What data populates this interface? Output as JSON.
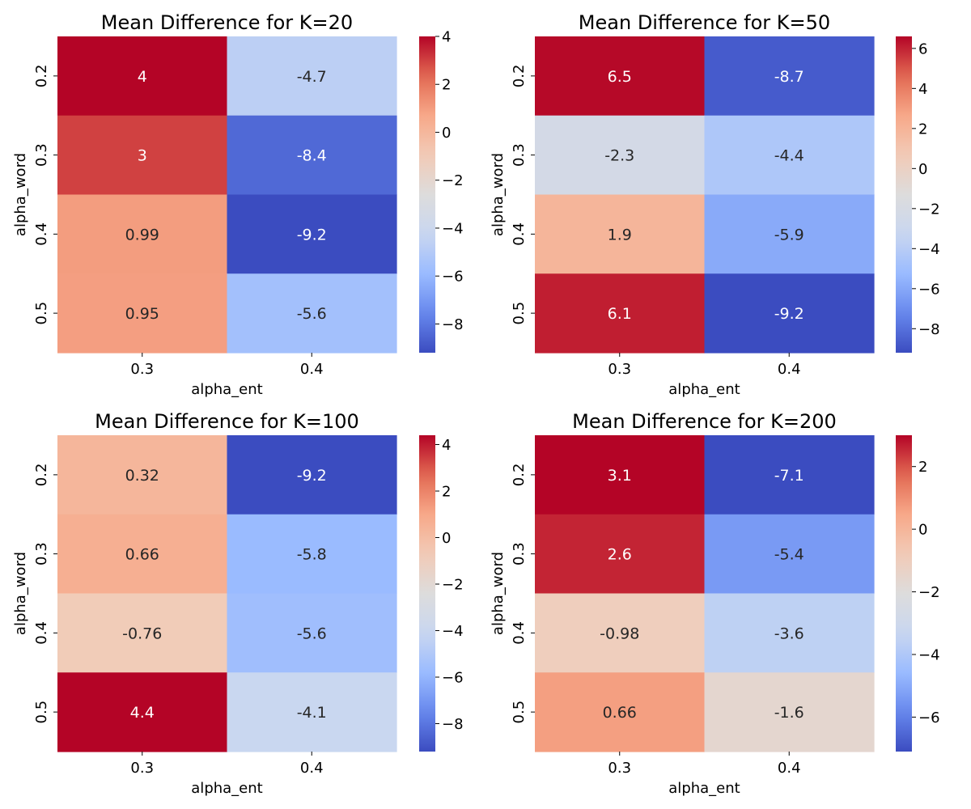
{
  "colormap": {
    "name": "coolwarm",
    "stops": [
      "#3b4cc0",
      "#6788ee",
      "#9abbff",
      "#c9d7f0",
      "#dddcdc",
      "#f2cbb7",
      "#f7a889",
      "#e26952",
      "#b40426"
    ]
  },
  "chart_data": [
    {
      "type": "heatmap",
      "title": "Mean Difference for K=20",
      "xlabel": "alpha_ent",
      "ylabel": "alpha_word",
      "x": [
        "0.3",
        "0.4"
      ],
      "y": [
        "0.2",
        "0.3",
        "0.4",
        "0.5"
      ],
      "values": [
        [
          4,
          -4.7
        ],
        [
          3,
          -8.4
        ],
        [
          0.99,
          -9.2
        ],
        [
          0.95,
          -5.6
        ]
      ],
      "labels": [
        [
          "4",
          "-4.7"
        ],
        [
          "3",
          "-8.4"
        ],
        [
          "0.99",
          "-9.2"
        ],
        [
          "0.95",
          "-5.6"
        ]
      ],
      "vmin": -9.2,
      "vmax": 4.0,
      "colorbar_ticks": [
        -8,
        -6,
        -4,
        -2,
        0,
        2,
        4
      ],
      "colorbar_tick_labels": [
        "−8",
        "−6",
        "−4",
        "−2",
        "0",
        "2",
        "4"
      ]
    },
    {
      "type": "heatmap",
      "title": "Mean Difference for K=50",
      "xlabel": "alpha_ent",
      "ylabel": "alpha_word",
      "x": [
        "0.3",
        "0.4"
      ],
      "y": [
        "0.2",
        "0.3",
        "0.4",
        "0.5"
      ],
      "values": [
        [
          6.5,
          -8.7
        ],
        [
          -2.3,
          -4.4
        ],
        [
          1.9,
          -5.9
        ],
        [
          6.1,
          -9.2
        ]
      ],
      "labels": [
        [
          "6.5",
          "-8.7"
        ],
        [
          "-2.3",
          "-4.4"
        ],
        [
          "1.9",
          "-5.9"
        ],
        [
          "6.1",
          "-9.2"
        ]
      ],
      "vmin": -9.2,
      "vmax": 6.6,
      "colorbar_ticks": [
        -8,
        -6,
        -4,
        -2,
        0,
        2,
        4,
        6
      ],
      "colorbar_tick_labels": [
        "−8",
        "−6",
        "−4",
        "−2",
        "0",
        "2",
        "4",
        "6"
      ]
    },
    {
      "type": "heatmap",
      "title": "Mean Difference for K=100",
      "xlabel": "alpha_ent",
      "ylabel": "alpha_word",
      "x": [
        "0.3",
        "0.4"
      ],
      "y": [
        "0.2",
        "0.3",
        "0.4",
        "0.5"
      ],
      "values": [
        [
          0.32,
          -9.2
        ],
        [
          0.66,
          -5.8
        ],
        [
          -0.76,
          -5.6
        ],
        [
          4.4,
          -4.1
        ]
      ],
      "labels": [
        [
          "0.32",
          "-9.2"
        ],
        [
          "0.66",
          "-5.8"
        ],
        [
          "-0.76",
          "-5.6"
        ],
        [
          "4.4",
          "-4.1"
        ]
      ],
      "vmin": -9.2,
      "vmax": 4.4,
      "colorbar_ticks": [
        -8,
        -6,
        -4,
        -2,
        0,
        2,
        4
      ],
      "colorbar_tick_labels": [
        "−8",
        "−6",
        "−4",
        "−2",
        "0",
        "2",
        "4"
      ]
    },
    {
      "type": "heatmap",
      "title": "Mean Difference for K=200",
      "xlabel": "alpha_ent",
      "ylabel": "alpha_word",
      "x": [
        "0.3",
        "0.4"
      ],
      "y": [
        "0.2",
        "0.3",
        "0.4",
        "0.5"
      ],
      "values": [
        [
          3.1,
          -7.1
        ],
        [
          2.6,
          -5.4
        ],
        [
          -0.98,
          -3.6
        ],
        [
          0.66,
          -1.6
        ]
      ],
      "labels": [
        [
          "3.1",
          "-7.1"
        ],
        [
          "2.6",
          "-5.4"
        ],
        [
          "-0.98",
          "-3.6"
        ],
        [
          "0.66",
          "-1.6"
        ]
      ],
      "vmin": -7.1,
      "vmax": 3.0,
      "colorbar_ticks": [
        -6,
        -4,
        -2,
        0,
        2
      ],
      "colorbar_tick_labels": [
        "−6",
        "−4",
        "−2",
        "0",
        "2"
      ]
    }
  ]
}
